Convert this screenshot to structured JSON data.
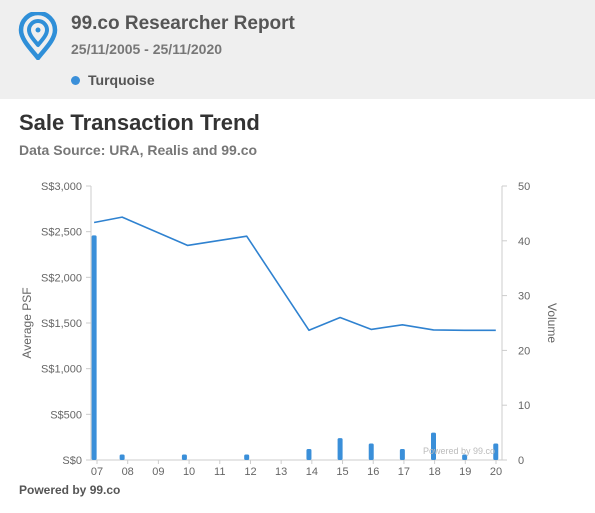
{
  "header": {
    "title": "99.co Researcher Report",
    "date_range": "25/11/2005 - 25/11/2020",
    "legend_label": "Turquoise",
    "legend_color": "#3a8fd9",
    "logo_icon": "map-pin-icon"
  },
  "chart_title": "Sale Transaction Trend",
  "data_source": "Data Source: URA, Realis and 99.co",
  "watermark": "Powered by 99.co",
  "footer": "Powered by 99.co",
  "chart_data": {
    "type": "line",
    "x_tick_labels": [
      "07",
      "08",
      "09",
      "10",
      "11",
      "12",
      "13",
      "14",
      "15",
      "16",
      "17",
      "18",
      "19",
      "20"
    ],
    "y_left": {
      "label": "Average PSF",
      "ticks": [
        "S$0",
        "S$500",
        "S$1,000",
        "S$1,500",
        "S$2,000",
        "S$2,500",
        "S$3,000"
      ],
      "range": [
        0,
        3000
      ]
    },
    "y_right": {
      "label": "Volume",
      "ticks": [
        "0",
        "10",
        "20",
        "30",
        "40",
        "50"
      ],
      "range": [
        0,
        50
      ]
    },
    "line_series": {
      "axis": "left",
      "color": "#2f82d0",
      "x": [
        6.9,
        7.8,
        9.9,
        11.8,
        13.8,
        14.8,
        15.8,
        16.8,
        17.8,
        18.8,
        19.8
      ],
      "values": [
        2600,
        2660,
        2350,
        2450,
        1420,
        1560,
        1430,
        1480,
        1425,
        1420,
        1420
      ]
    },
    "bar_series": {
      "axis": "right",
      "color": "#3a8fd9",
      "x": [
        6.9,
        7.8,
        9.8,
        11.8,
        13.8,
        14.8,
        15.8,
        16.8,
        17.8,
        18.8,
        19.8
      ],
      "values": [
        41,
        1,
        1,
        1,
        2,
        4,
        3,
        2,
        5,
        1,
        3
      ]
    },
    "grid": false,
    "legend": "header"
  }
}
